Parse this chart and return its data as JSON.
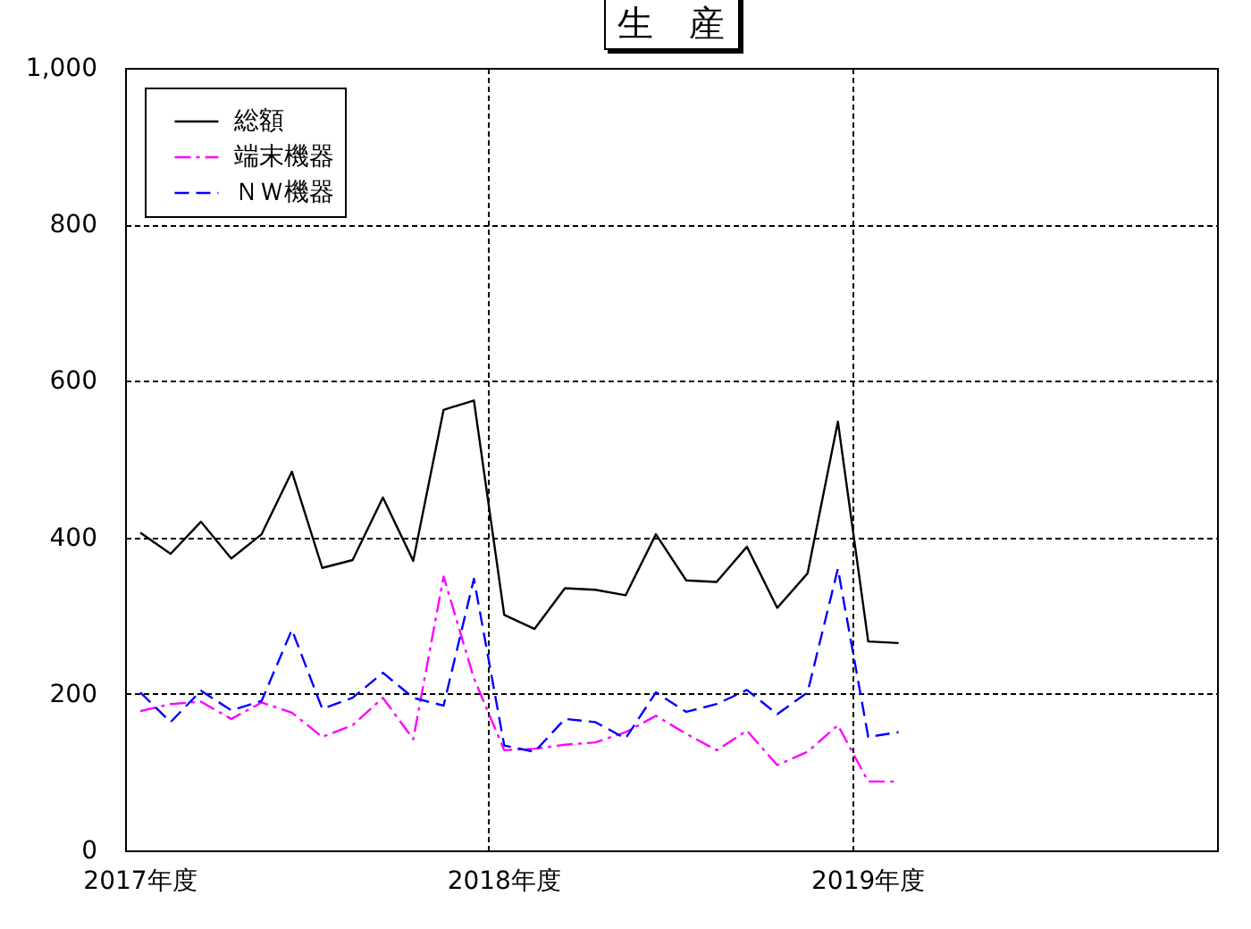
{
  "chart_data": {
    "type": "line",
    "title": "生　産",
    "categories": [
      "2017年度",
      null,
      null,
      null,
      null,
      null,
      null,
      null,
      null,
      null,
      null,
      null,
      "2018年度",
      null,
      null,
      null,
      null,
      null,
      null,
      null,
      null,
      null,
      null,
      null,
      "2019年度",
      null,
      null,
      null,
      null,
      null,
      null,
      null,
      null,
      null,
      null,
      null
    ],
    "series": [
      {
        "name": "総額",
        "color": "#000000",
        "line_style": "solid",
        "values": [
          406,
          379,
          420,
          373,
          404,
          484,
          361,
          371,
          451,
          370,
          563,
          575,
          301,
          283,
          335,
          333,
          326,
          404,
          345,
          343,
          388,
          310,
          354,
          548,
          267,
          265,
          null,
          null,
          null,
          null,
          null,
          null,
          null,
          null,
          null,
          null
        ]
      },
      {
        "name": "端末機器",
        "color": "#ff00ff",
        "line_style": "dashdot",
        "values": [
          178,
          187,
          190,
          168,
          189,
          176,
          145,
          160,
          195,
          142,
          350,
          220,
          128,
          130,
          135,
          138,
          151,
          172,
          149,
          128,
          153,
          109,
          126,
          160,
          88,
          88,
          null,
          null,
          null,
          null,
          null,
          null,
          null,
          null,
          null,
          null
        ]
      },
      {
        "name": "ＮＷ機器",
        "color": "#0000ff",
        "line_style": "dashed",
        "values": [
          202,
          164,
          204,
          179,
          191,
          282,
          181,
          195,
          227,
          195,
          185,
          347,
          134,
          126,
          168,
          164,
          143,
          202,
          177,
          187,
          205,
          174,
          202,
          360,
          145,
          151,
          null,
          null,
          null,
          null,
          null,
          null,
          null,
          null,
          null,
          null
        ]
      }
    ],
    "ylim": [
      0,
      1000
    ],
    "yticks": [
      0,
      200,
      400,
      600,
      800,
      {
        "value": 1000,
        "label": "1,000"
      }
    ],
    "grid": true,
    "legend": "top left"
  }
}
